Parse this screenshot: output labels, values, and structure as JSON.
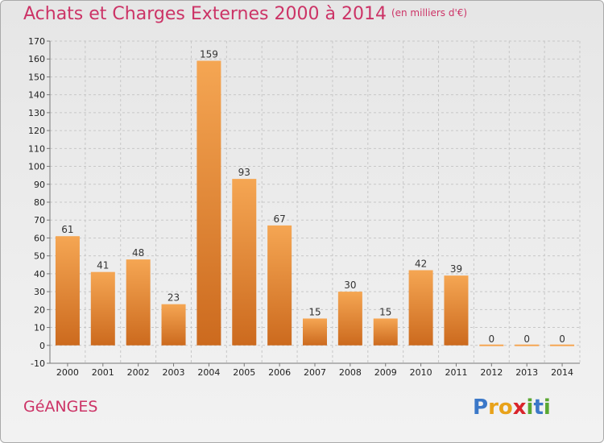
{
  "header": {
    "title": "Achats et Charges Externes 2000 à 2014",
    "unit": "(en milliers d'€)"
  },
  "footer": {
    "commune": "GéANGES",
    "logo_text": "Proxiti",
    "logo_letters": [
      "P",
      "r",
      "o",
      "x",
      "i",
      "t",
      "i"
    ],
    "logo_colors": [
      "#3b78c8",
      "#e8a21a",
      "#e8a21a",
      "#d9242b",
      "#5aa832",
      "#3b78c8",
      "#5aa832"
    ]
  },
  "colors": {
    "bar_light": "#f5a653",
    "bar_dark": "#cc6a1e",
    "grid": "#c7c7c7",
    "text_accent": "#cc3366"
  },
  "chart_data": {
    "type": "bar",
    "categories": [
      "2000",
      "2001",
      "2002",
      "2003",
      "2004",
      "2005",
      "2006",
      "2007",
      "2008",
      "2009",
      "2010",
      "2011",
      "2012",
      "2013",
      "2014"
    ],
    "values": [
      61,
      41,
      48,
      23,
      159,
      93,
      67,
      15,
      30,
      15,
      42,
      39,
      0,
      0,
      0
    ],
    "data_labels": [
      "61",
      "41",
      "48",
      "23",
      "159",
      "93",
      "67",
      "15",
      "30",
      "15",
      "42",
      "39",
      "0",
      "0",
      "0"
    ],
    "title": "Achats et Charges Externes 2000 à 2014",
    "xlabel": "",
    "ylabel": "",
    "ylim": [
      -10,
      170
    ],
    "yticks": [
      -10,
      0,
      10,
      20,
      30,
      40,
      50,
      60,
      70,
      80,
      90,
      100,
      110,
      120,
      130,
      140,
      150,
      160,
      170
    ],
    "grid": true,
    "legend": "none"
  }
}
